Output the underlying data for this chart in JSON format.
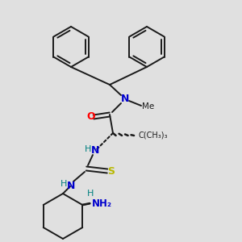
{
  "background_color": "#e0e0e0",
  "line_color": "#1a1a1a",
  "N_color": "#0000cd",
  "O_color": "#ff0000",
  "S_color": "#b8b800",
  "H_color": "#008080",
  "line_width": 1.4,
  "figsize": [
    3.0,
    3.0
  ],
  "dpi": 100,
  "xlim": [
    0,
    300
  ],
  "ylim": [
    0,
    300
  ]
}
